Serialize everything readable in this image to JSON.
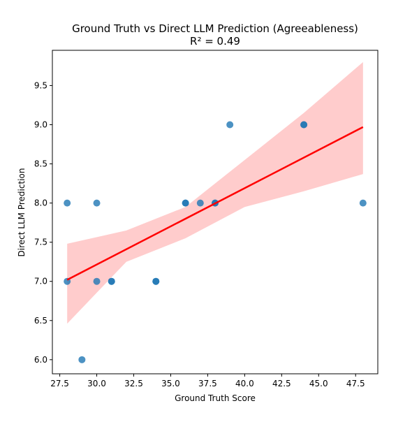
{
  "chart_data": {
    "type": "scatter",
    "title": "Ground Truth vs Direct LLM Prediction (Agreeableness)",
    "subtitle": "R² = 0.49",
    "xlabel": "Ground Truth Score",
    "ylabel": "Direct LLM Prediction",
    "xlim": [
      27.0,
      49.0
    ],
    "ylim": [
      5.82,
      9.95
    ],
    "xticks": [
      "27.5",
      "30.0",
      "32.5",
      "35.0",
      "37.5",
      "40.0",
      "42.5",
      "45.0",
      "47.5"
    ],
    "yticks": [
      "6.0",
      "6.5",
      "7.0",
      "7.5",
      "8.0",
      "8.5",
      "9.0",
      "9.5"
    ],
    "grid": false,
    "legend": "none",
    "points": [
      {
        "x": 28,
        "y": 7.0
      },
      {
        "x": 28,
        "y": 8.0
      },
      {
        "x": 29,
        "y": 6.0
      },
      {
        "x": 30,
        "y": 7.0
      },
      {
        "x": 30,
        "y": 8.0
      },
      {
        "x": 31,
        "y": 7.0
      },
      {
        "x": 31,
        "y": 7.0
      },
      {
        "x": 34,
        "y": 7.0
      },
      {
        "x": 34,
        "y": 7.0
      },
      {
        "x": 36,
        "y": 8.0
      },
      {
        "x": 36,
        "y": 8.0
      },
      {
        "x": 37,
        "y": 8.0
      },
      {
        "x": 38,
        "y": 8.0
      },
      {
        "x": 38,
        "y": 8.0
      },
      {
        "x": 39,
        "y": 9.0
      },
      {
        "x": 44,
        "y": 9.0
      },
      {
        "x": 44,
        "y": 9.0
      },
      {
        "x": 48,
        "y": 8.0
      }
    ],
    "regression": {
      "start": {
        "x": 28,
        "y": 7.02
      },
      "end": {
        "x": 48,
        "y": 8.97
      },
      "band_upper": [
        {
          "x": 28,
          "y": 7.48
        },
        {
          "x": 32,
          "y": 7.65
        },
        {
          "x": 36,
          "y": 7.95
        },
        {
          "x": 40,
          "y": 8.55
        },
        {
          "x": 44,
          "y": 9.15
        },
        {
          "x": 48,
          "y": 9.8
        }
      ],
      "band_lower": [
        {
          "x": 28,
          "y": 6.46
        },
        {
          "x": 32,
          "y": 7.25
        },
        {
          "x": 36,
          "y": 7.55
        },
        {
          "x": 40,
          "y": 7.95
        },
        {
          "x": 44,
          "y": 8.15
        },
        {
          "x": 48,
          "y": 8.37
        }
      ]
    },
    "colors": {
      "points": "#1f77b4",
      "line": "#ff0000",
      "band": "#ffcccc"
    }
  }
}
